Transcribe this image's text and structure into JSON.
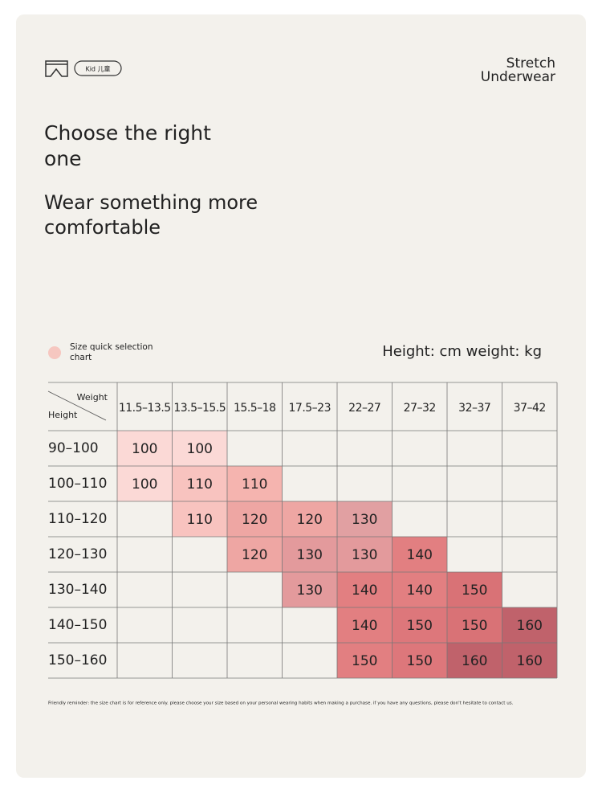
{
  "header": {
    "badge": "Kid 儿童",
    "brand_line1": "Stretch",
    "brand_line2": "Underwear"
  },
  "headline": {
    "line1": "Choose the right",
    "line2": "one",
    "sub1": "Wear something more",
    "sub2": "comfortable"
  },
  "legend": {
    "label_line1": "Size quick selection",
    "label_line2": "chart",
    "units": "Height: cm weight: kg"
  },
  "table": {
    "corner_top": "Weight",
    "corner_bottom": "Height",
    "columns": [
      "11.5–13.5",
      "13.5–15.5",
      "15.5–18",
      "17.5–23",
      "22–27",
      "27–32",
      "32–37",
      "37–42"
    ],
    "rows": [
      {
        "label": "90–100",
        "cells": [
          {
            "text": "100",
            "color": "#fbd9d6"
          },
          {
            "text": "100",
            "color": "#fbd9d6"
          },
          null,
          null,
          null,
          null,
          null,
          null
        ]
      },
      {
        "label": "100–110",
        "cells": [
          {
            "text": "100",
            "color": "#fbd9d6"
          },
          {
            "text": "110",
            "color": "#f8c3bf"
          },
          {
            "text": "110",
            "color": "#f5b4af"
          },
          null,
          null,
          null,
          null,
          null
        ]
      },
      {
        "label": "110–120",
        "cells": [
          null,
          {
            "text": "110",
            "color": "#f8c3bf"
          },
          {
            "text": "120",
            "color": "#eea6a3"
          },
          {
            "text": "120",
            "color": "#eea6a3"
          },
          {
            "text": "130",
            "color": "#e1a0a2"
          },
          null,
          null,
          null
        ]
      },
      {
        "label": "120–130",
        "cells": [
          null,
          null,
          {
            "text": "120",
            "color": "#eea6a3"
          },
          {
            "text": "130",
            "color": "#e39a9c"
          },
          {
            "text": "130",
            "color": "#e39a9c"
          },
          {
            "text": "140",
            "color": "#e27f81"
          },
          null,
          null
        ]
      },
      {
        "label": "130–140",
        "cells": [
          null,
          null,
          null,
          {
            "text": "130",
            "color": "#e39a9c"
          },
          {
            "text": "140",
            "color": "#e27f81"
          },
          {
            "text": "140",
            "color": "#e27f81"
          },
          {
            "text": "150",
            "color": "#d97276"
          },
          null
        ]
      },
      {
        "label": "140–150",
        "cells": [
          null,
          null,
          null,
          null,
          {
            "text": "140",
            "color": "#e27f81"
          },
          {
            "text": "150",
            "color": "#dd777b"
          },
          {
            "text": "150",
            "color": "#d97276"
          },
          {
            "text": "160",
            "color": "#c0626b"
          }
        ]
      },
      {
        "label": "150–160",
        "cells": [
          null,
          null,
          null,
          null,
          {
            "text": "150",
            "color": "#e27f81"
          },
          {
            "text": "150",
            "color": "#dd777b"
          },
          {
            "text": "160",
            "color": "#c0626b"
          },
          {
            "text": "160",
            "color": "#c0626b"
          }
        ]
      }
    ]
  },
  "footnote": "Friendly reminder: the size chart is for reference only. please choose your size based on your personal wearing habits when making a purchase. if you have any questions, please don't hesitate to contact us."
}
